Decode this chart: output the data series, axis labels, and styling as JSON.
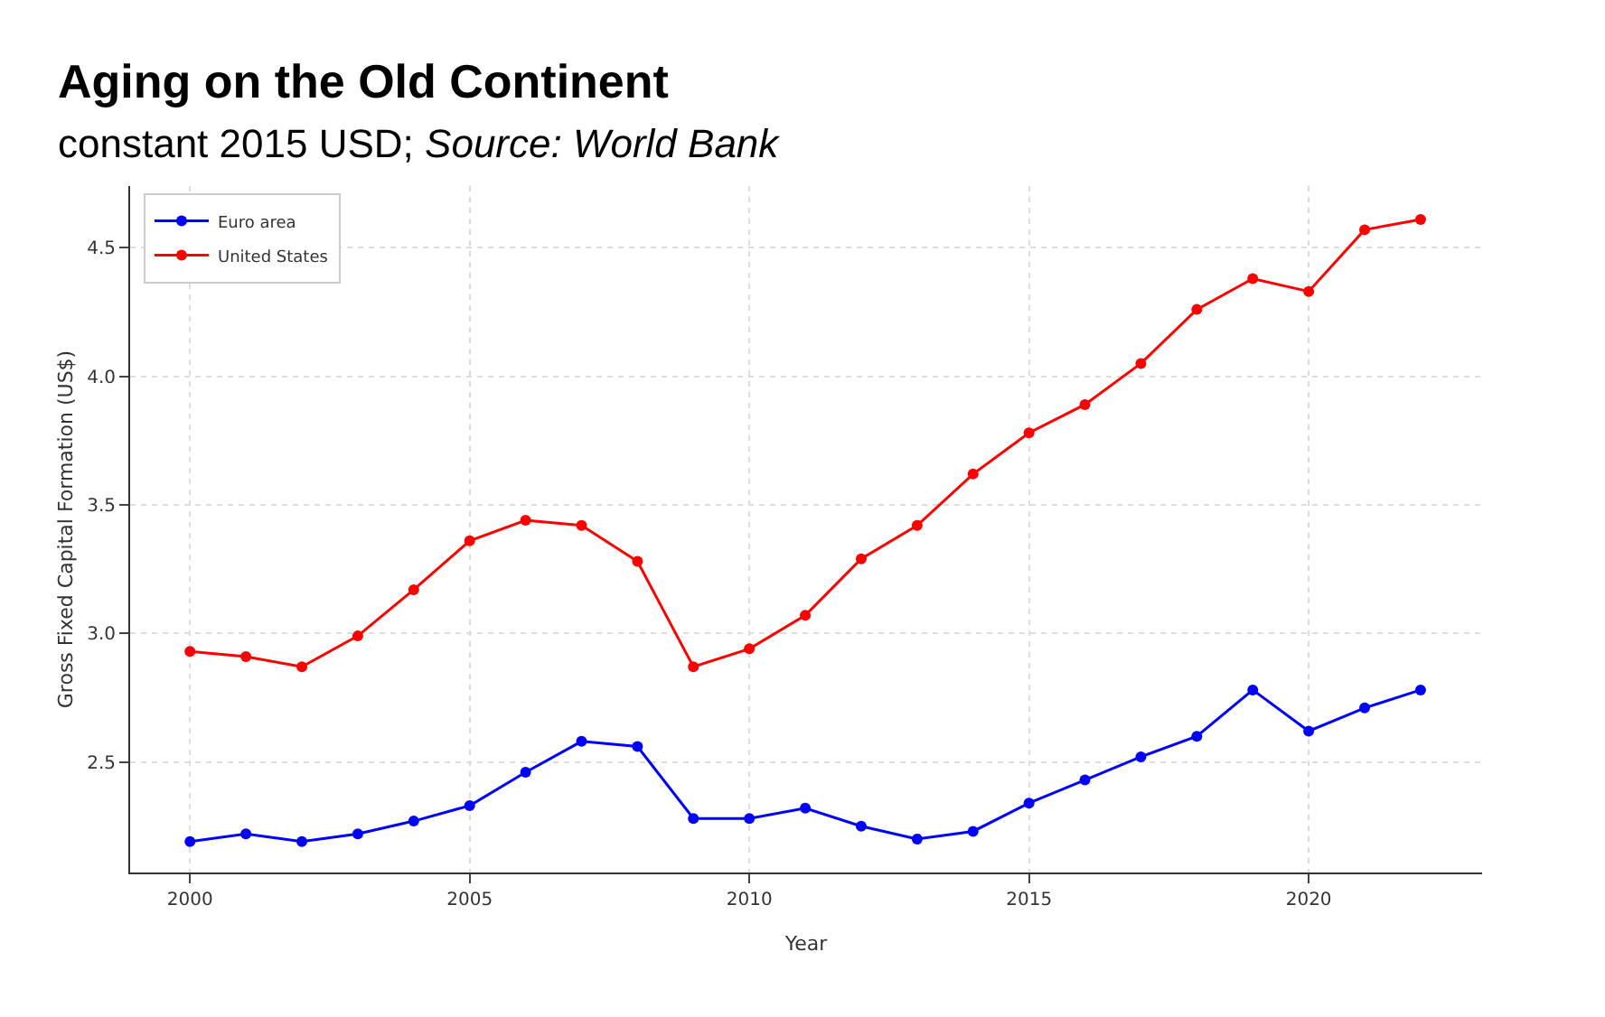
{
  "chart_data": {
    "type": "line",
    "title": "Aging on the Old Continent",
    "subtitle": "constant 2015 USD;",
    "annotations": [
      "Source: World Bank"
    ],
    "xlabel": "Year",
    "ylabel": "Gross Fixed Capital Formation (US$)",
    "x": [
      2000,
      2001,
      2002,
      2003,
      2004,
      2005,
      2006,
      2007,
      2008,
      2009,
      2010,
      2011,
      2012,
      2013,
      2014,
      2015,
      2016,
      2017,
      2018,
      2019,
      2020,
      2021,
      2022
    ],
    "series": [
      {
        "name": "Euro area",
        "color": "#0000ff",
        "values": [
          2.19,
          2.22,
          2.19,
          2.22,
          2.27,
          2.33,
          2.46,
          2.58,
          2.56,
          2.28,
          2.28,
          2.32,
          2.25,
          2.2,
          2.23,
          2.34,
          2.43,
          2.52,
          2.6,
          2.78,
          2.62,
          2.71,
          2.78
        ]
      },
      {
        "name": "United States",
        "color": "#ff0000",
        "values": [
          2.93,
          2.91,
          2.87,
          2.99,
          3.17,
          3.36,
          3.44,
          3.42,
          3.28,
          2.87,
          2.94,
          3.07,
          3.29,
          3.42,
          3.62,
          3.78,
          3.89,
          4.05,
          4.26,
          4.38,
          4.33,
          4.57,
          4.61
        ]
      }
    ],
    "xlim": [
      1998.93,
      2023.1
    ],
    "xticks": [
      2000,
      2005,
      2010,
      2015,
      2020
    ],
    "ylim": [
      2.07,
      4.74
    ],
    "yticks": [
      2.5,
      {
        "value": 3,
        "label": "3.0"
      },
      3.5,
      {
        "value": 4,
        "label": "4.0"
      },
      4.5
    ],
    "grid": true,
    "legend": "top left",
    "marker": "circle",
    "line_style": "solid"
  }
}
